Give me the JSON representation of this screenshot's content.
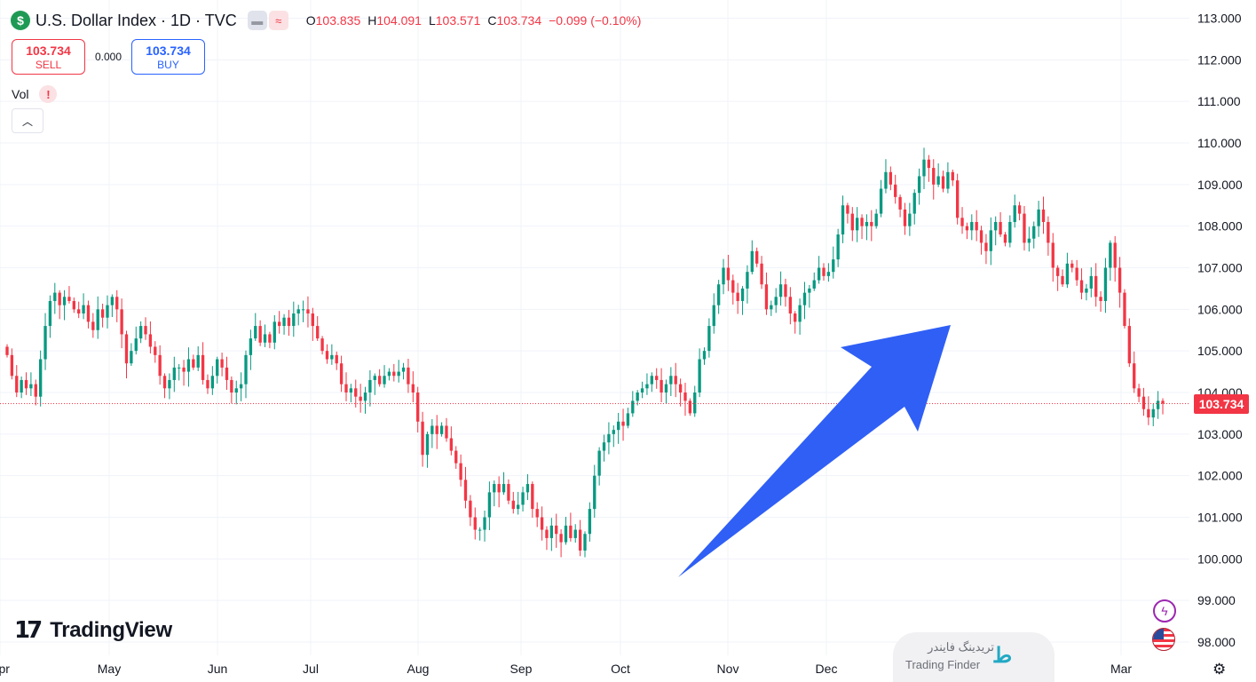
{
  "header": {
    "symbol_icon": "$",
    "title": "U.S. Dollar Index · 1D · TVC",
    "toggle_icon_1": "▬",
    "toggle_icon_2": "≈",
    "ohlc": {
      "o_label": "O",
      "o": "103.835",
      "h_label": "H",
      "h": "104.091",
      "l_label": "L",
      "l": "103.571",
      "c_label": "C",
      "c": "103.734",
      "change": "−0.099 (−0.10%)"
    }
  },
  "trade": {
    "sell_price": "103.734",
    "sell_label": "SELL",
    "spread": "0.000",
    "buy_price": "103.734",
    "buy_label": "BUY"
  },
  "volume": {
    "label": "Vol",
    "warning_icon": "!"
  },
  "collapse_icon": "chevron-up-icon",
  "collapse_glyph": "︿",
  "logo": {
    "mark": "17",
    "text": "TradingView"
  },
  "watermark": {
    "fa": "تریدینگ فایندر",
    "en": "Trading Finder",
    "mark": "ط"
  },
  "colors": {
    "up": "#089981",
    "down": "#f23645",
    "arrow": "#2f5ff5",
    "last_price": "#f23645",
    "grid": "#f0f3fa",
    "price_line": "#f23645"
  },
  "last_price_label": "103.734",
  "bottom_icons": {
    "bolt": "ϟ",
    "gear": "⚙"
  },
  "chart_data": {
    "type": "candlestick",
    "title": "U.S. Dollar Index · 1D · TVC",
    "xlabel": "",
    "ylabel": "",
    "ylim": [
      97.6,
      113.3
    ],
    "y_ticks": [
      "113.000",
      "112.000",
      "111.000",
      "110.000",
      "109.000",
      "108.000",
      "107.000",
      "106.000",
      "105.000",
      "104.000",
      "103.000",
      "102.000",
      "101.000",
      "100.000",
      "99.000",
      "98.000"
    ],
    "x_ticks": [
      "Apr",
      "May",
      "Jun",
      "Jul",
      "Aug",
      "Sep",
      "Oct",
      "Nov",
      "Dec",
      "Mar"
    ],
    "grid": true,
    "last_price": 103.734,
    "annotation": "upward trend arrow from Oct low to Dec high",
    "closes": [
      104.9,
      104.4,
      104.0,
      104.3,
      104.1,
      104.2,
      103.9,
      104.8,
      105.6,
      106.2,
      106.4,
      106.1,
      106.3,
      106.2,
      106.0,
      105.9,
      106.1,
      105.7,
      105.5,
      106.0,
      105.8,
      106.1,
      106.3,
      106.0,
      105.4,
      104.7,
      105.0,
      105.3,
      105.6,
      105.4,
      105.1,
      104.9,
      104.4,
      104.1,
      104.3,
      104.6,
      104.6,
      104.5,
      104.8,
      104.6,
      104.9,
      104.3,
      104.1,
      104.4,
      104.8,
      104.6,
      104.3,
      104.0,
      104.1,
      104.2,
      104.9,
      105.3,
      105.6,
      105.2,
      105.4,
      105.2,
      105.7,
      105.6,
      105.8,
      105.6,
      105.9,
      106.0,
      106.0,
      105.9,
      105.6,
      105.3,
      105.0,
      104.8,
      104.9,
      104.7,
      104.2,
      104.0,
      104.1,
      103.9,
      103.8,
      104.0,
      104.3,
      104.4,
      104.2,
      104.4,
      104.5,
      104.4,
      104.5,
      104.6,
      104.2,
      104.0,
      103.3,
      102.5,
      103.0,
      103.2,
      103.0,
      103.2,
      102.9,
      102.6,
      102.3,
      101.9,
      101.4,
      101.0,
      100.7,
      100.7,
      101.0,
      101.6,
      101.8,
      101.6,
      101.8,
      101.4,
      101.2,
      101.3,
      101.6,
      101.8,
      101.2,
      101.0,
      100.7,
      100.5,
      100.8,
      100.6,
      100.4,
      100.8,
      100.5,
      100.7,
      100.2,
      100.6,
      101.2,
      102.0,
      102.6,
      102.8,
      103.0,
      103.1,
      103.3,
      103.2,
      103.5,
      103.8,
      104.0,
      104.1,
      104.2,
      104.4,
      104.3,
      104.0,
      104.2,
      104.4,
      104.2,
      104.0,
      103.8,
      103.5,
      104.0,
      104.8,
      105.0,
      105.6,
      106.1,
      106.6,
      107.0,
      106.7,
      106.4,
      106.2,
      106.5,
      106.9,
      107.4,
      107.1,
      106.6,
      106.0,
      106.1,
      106.3,
      106.6,
      106.3,
      105.9,
      105.7,
      106.1,
      106.4,
      106.5,
      106.7,
      107.0,
      106.8,
      106.9,
      107.2,
      107.8,
      108.5,
      108.3,
      107.9,
      108.2,
      108.0,
      108.1,
      108.0,
      108.3,
      108.9,
      109.3,
      109.0,
      108.7,
      108.4,
      108.0,
      108.3,
      108.8,
      109.2,
      109.6,
      109.4,
      109.0,
      109.2,
      108.9,
      109.3,
      109.1,
      108.2,
      108.0,
      107.9,
      108.1,
      107.9,
      107.6,
      107.4,
      107.9,
      108.1,
      107.8,
      107.6,
      108.1,
      108.5,
      108.3,
      107.6,
      107.7,
      108.0,
      108.4,
      108.1,
      107.6,
      107.0,
      106.8,
      106.6,
      107.1,
      107.0,
      106.7,
      106.4,
      106.5,
      106.8,
      106.3,
      106.2,
      107.0,
      107.6,
      107.0,
      106.4,
      105.6,
      104.7,
      104.1,
      103.9,
      103.6,
      103.4,
      103.6,
      103.8,
      103.734
    ]
  }
}
